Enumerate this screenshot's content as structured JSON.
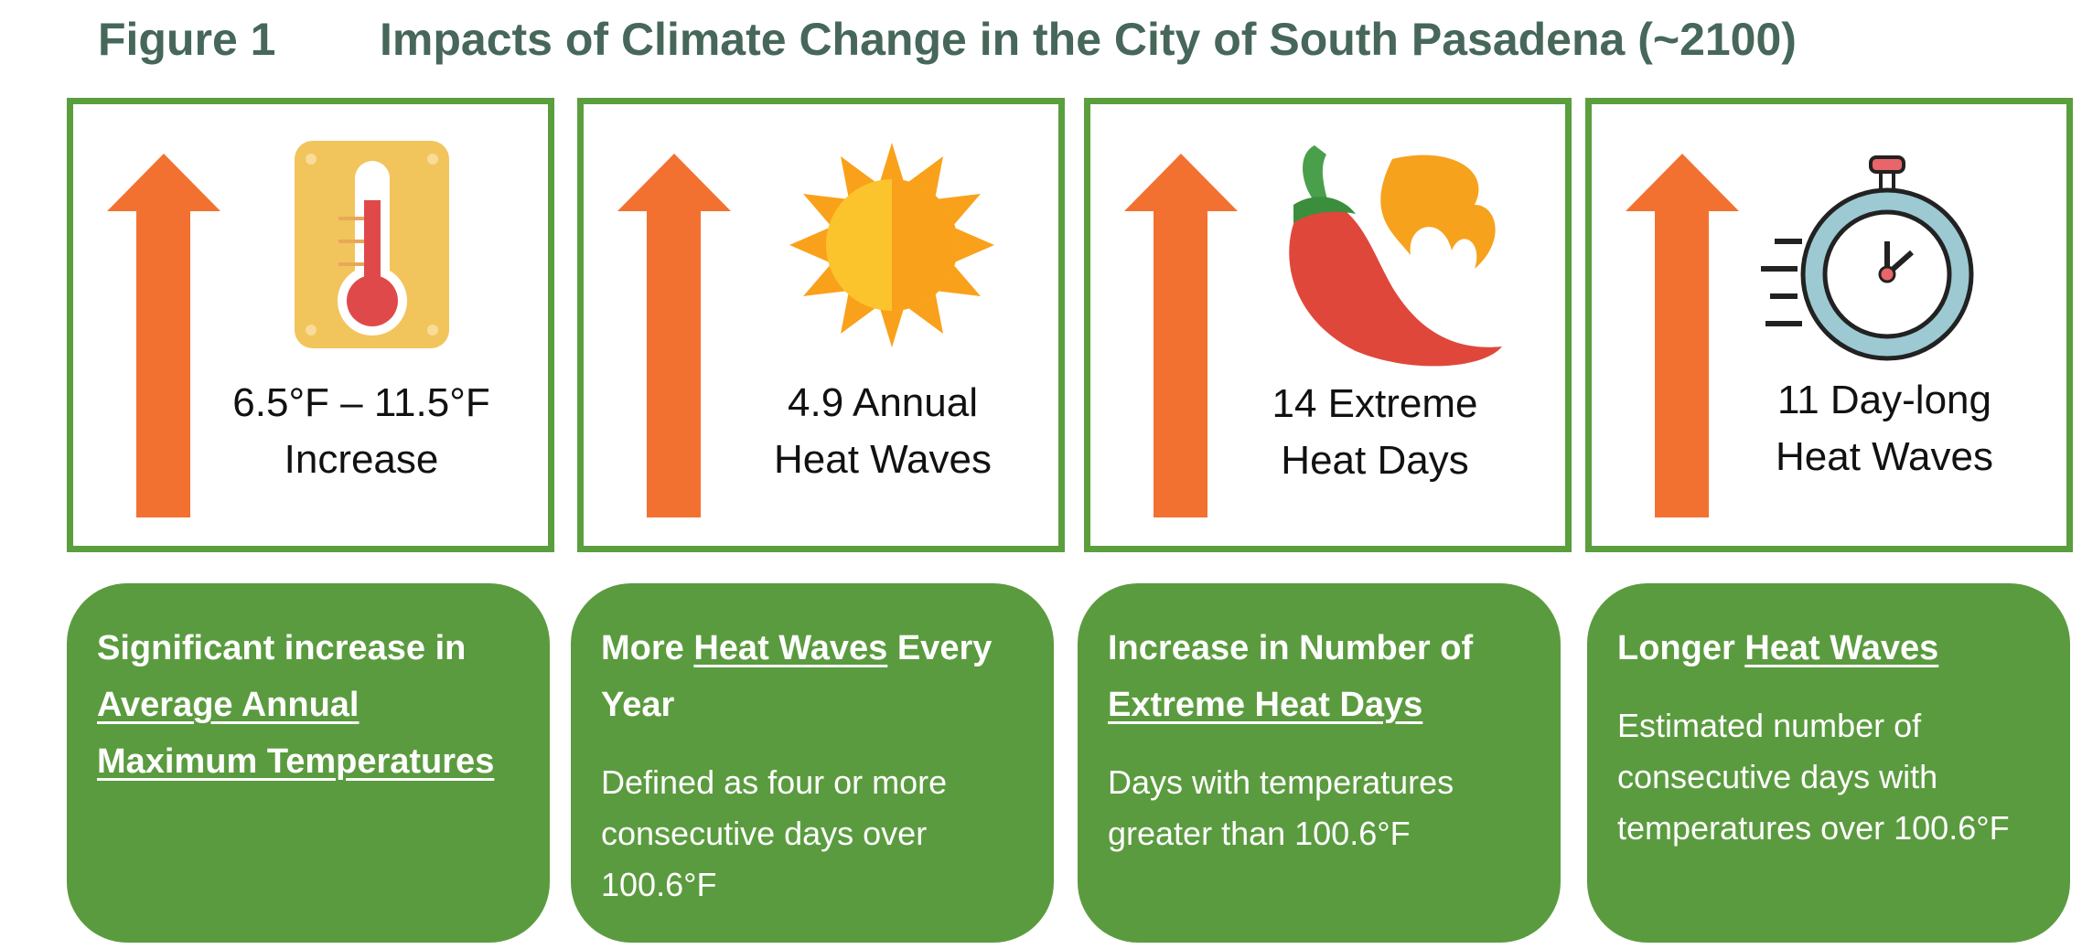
{
  "header": {
    "figure_label": "Figure 1",
    "title": "Impacts of Climate Change in the City of South Pasadena (~2100)"
  },
  "panels": [
    {
      "stat": [
        "6.5°F – 11.5°F",
        "Increase"
      ]
    },
    {
      "stat": [
        "4.9 Annual",
        "Heat Waves"
      ]
    },
    {
      "stat": [
        "14 Extreme",
        "Heat Days"
      ]
    },
    {
      "stat": [
        "11 Day-long",
        "Heat Waves"
      ]
    }
  ],
  "cards": [
    {
      "heading": [
        "Significant increase in ",
        "Average Annual Maximum Temperatures"
      ]
    },
    {
      "heading": [
        "More ",
        "Heat Waves",
        " Every Year"
      ],
      "description": "Defined as four or more consecutive days over 100.6°F"
    },
    {
      "heading": [
        "Increase in Number of ",
        "Extreme Heat Days"
      ],
      "description": "Days with temperatures greater than 100.6°F"
    },
    {
      "heading": [
        "Longer ",
        "Heat Waves"
      ],
      "description": "Estimated number of consecutive days with temperatures over 100.6°F"
    }
  ]
}
